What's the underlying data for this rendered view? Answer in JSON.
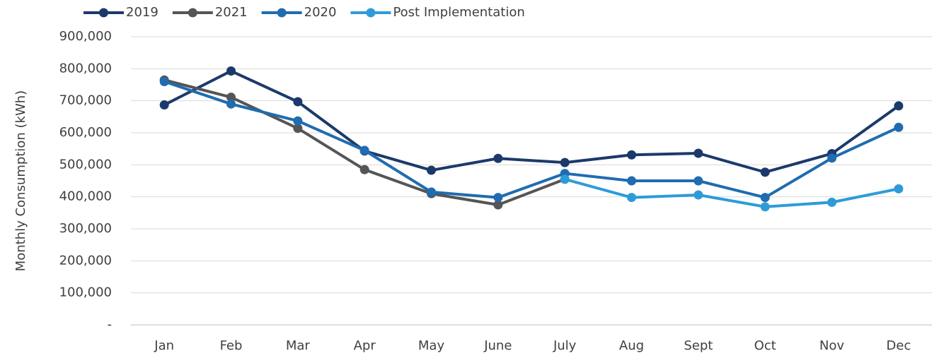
{
  "chart_data": {
    "type": "line",
    "y_label": "Monthly Consumption (kWh)",
    "categories": [
      "Jan",
      "Feb",
      "Mar",
      "Apr",
      "May",
      "June",
      "July",
      "Aug",
      "Sept",
      "Oct",
      "Nov",
      "Dec"
    ],
    "series": [
      {
        "name": "2019",
        "color": "#1b3a6b",
        "values": [
          687000,
          793000,
          697000,
          543000,
          483000,
          520000,
          507000,
          531000,
          536000,
          477000,
          535000,
          684000
        ]
      },
      {
        "name": "2021",
        "color": "#555555",
        "values": [
          765000,
          711000,
          614000,
          485000,
          410000,
          375000,
          455000,
          null,
          null,
          null,
          null,
          null
        ]
      },
      {
        "name": "2020",
        "color": "#1f6cb0",
        "values": [
          760000,
          690000,
          637000,
          545000,
          415000,
          398000,
          473000,
          450000,
          450000,
          398000,
          521000,
          617000
        ]
      },
      {
        "name": "Post Implementation",
        "color": "#2e9bd9",
        "values": [
          null,
          null,
          null,
          null,
          null,
          null,
          455000,
          398000,
          406000,
          369000,
          383000,
          425000
        ]
      }
    ],
    "ylim": [
      0,
      900000
    ],
    "yticks": [
      {
        "value": 0,
        "label": "-"
      },
      {
        "value": 100000,
        "label": "100,000"
      },
      {
        "value": 200000,
        "label": "200,000"
      },
      {
        "value": 300000,
        "label": "300,000"
      },
      {
        "value": 400000,
        "label": "400,000"
      },
      {
        "value": 500000,
        "label": "500,000"
      },
      {
        "value": 600000,
        "label": "600,000"
      },
      {
        "value": 700000,
        "label": "700,000"
      },
      {
        "value": 800000,
        "label": "800,000"
      },
      {
        "value": 900000,
        "label": "900,000"
      }
    ],
    "grid": true,
    "legend": "top-left"
  }
}
